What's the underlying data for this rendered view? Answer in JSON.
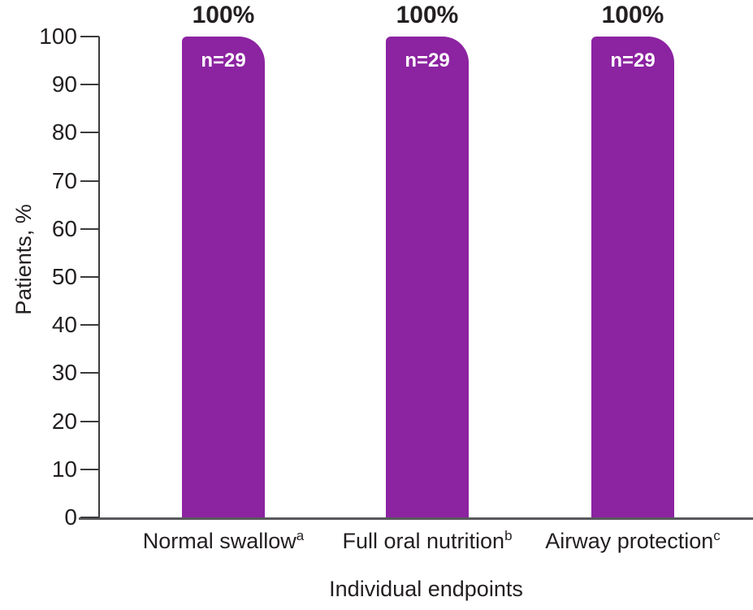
{
  "chart_data": {
    "type": "bar",
    "title": "",
    "categories": [
      "Normal swallow",
      "Full oral nutrition",
      "Airway protection"
    ],
    "category_superscripts": [
      "a",
      "b",
      "c"
    ],
    "values": [
      100,
      100,
      100
    ],
    "value_labels": [
      "100%",
      "100%",
      "100%"
    ],
    "bar_annotations": [
      "n=29",
      "n=29",
      "n=29"
    ],
    "xlabel": "Individual endpoints",
    "ylabel": "Patients, %",
    "ylim": [
      0,
      100
    ],
    "yticks": [
      0,
      10,
      20,
      30,
      40,
      50,
      60,
      70,
      80,
      90,
      100
    ],
    "grid": false,
    "legend": "none",
    "colors": {
      "bar": "#8C23A1",
      "bar_annotation_text": "#FFFFFF",
      "value_label_text": "#231F20",
      "axis_text": "#231F20",
      "y_axis_line": "#3B3B3D",
      "tick_mark": "#3B3B3D",
      "x_axis_line": "#58595B",
      "background": "#FFFFFF"
    }
  }
}
